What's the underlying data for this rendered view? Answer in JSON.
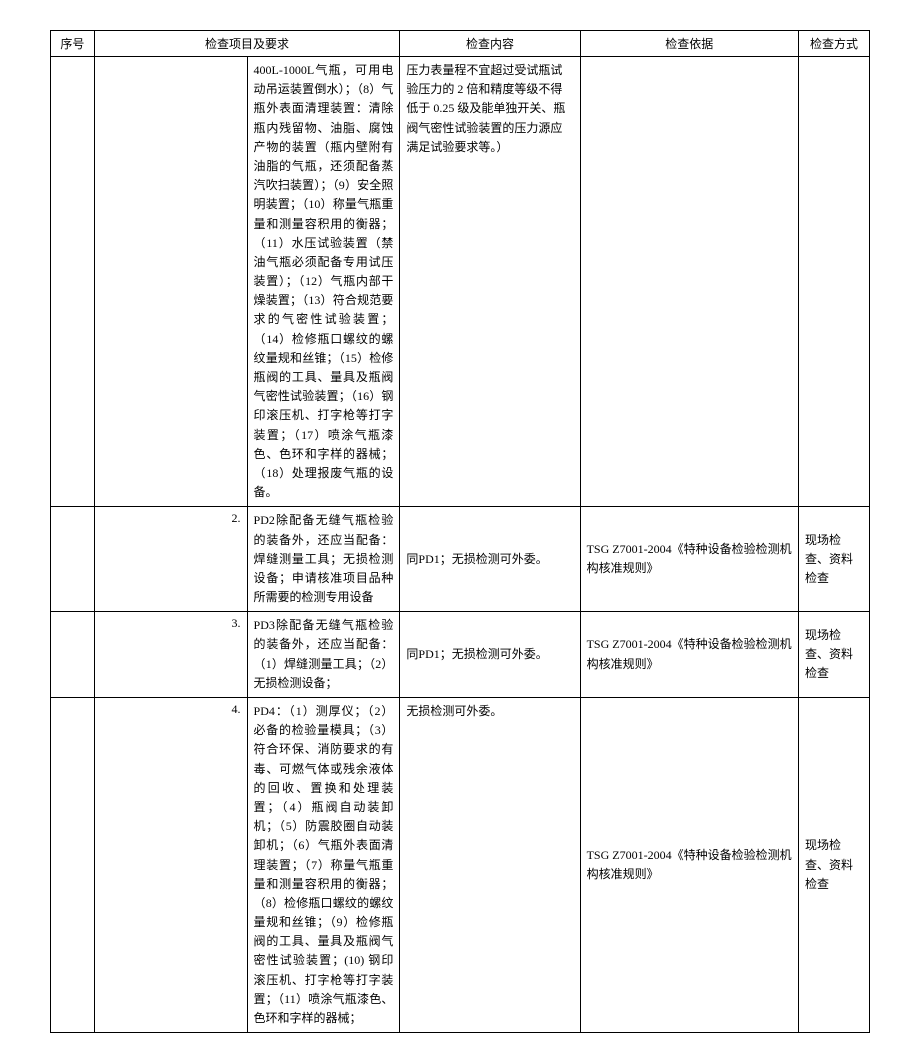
{
  "headers": {
    "seq": "序号",
    "item": "检查项目及要求",
    "content": "检查内容",
    "basis": "检查依据",
    "method": "检查方式"
  },
  "rows": [
    {
      "seq": "",
      "sub": "",
      "item": "400L-1000L气瓶，可用电动吊运装置倒水）；（8）气瓶外表面清理装置：清除瓶内残留物、油脂、腐蚀产物的装置（瓶内壁附有油脂的气瓶，还须配备蒸汽吹扫装置）；（9）安全照明装置；（10）称量气瓶重量和测量容积用的衡器；（11）水压试验装置（禁油气瓶必须配备专用试压装置）；（12）气瓶内部干燥装置；（13）符合规范要求的气密性试验装置；（14）检修瓶口螺纹的螺纹量规和丝锥；（15）检修瓶阀的工具、量具及瓶阀气密性试验装置；（16）钢印滚压机、打字枪等打字装置；（17）喷涂气瓶漆色、色环和字样的器械；（18）处理报废气瓶的设备。",
      "content": "压力表量程不宜超过受试瓶试验压力的 2 倍和精度等级不得低于 0.25 级及能单独开关、瓶阀气密性试验装置的压力源应满足试验要求等。）",
      "basis": "",
      "method": ""
    },
    {
      "seq": "",
      "sub": "2.",
      "item": "PD2除配备无缝气瓶检验的装备外，还应当配备：焊缝测量工具；无损检测设备；申请核准项目品种所需要的检测专用设备",
      "content": "同PD1；无损检测可外委。",
      "basis": "TSG Z7001-2004《特种设备检验检测机构核准规则》",
      "method": "现场检查、资料检查"
    },
    {
      "seq": "",
      "sub": "3.",
      "item": "PD3除配备无缝气瓶检验的装备外，还应当配备：（1）焊缝测量工具；（2）无损检测设备；",
      "content": "同PD1；无损检测可外委。",
      "basis": "TSG Z7001-2004《特种设备检验检测机构核准规则》",
      "method": "现场检查、资料检查"
    },
    {
      "seq": "",
      "sub": "4.",
      "item": "PD4：（1）测厚仪；（2）必备的检验量模具；（3）符合环保、消防要求的有毒、可燃气体或残余液体的回收、置换和处理装置；（4）瓶阀自动装卸机；（5）防震胶圈自动装卸机；（6）气瓶外表面清理装置；（7）称量气瓶重量和测量容积用的衡器；（8）检修瓶口螺纹的螺纹量规和丝锥；（9）检修瓶阀的工具、量具及瓶阀气密性试验装置；(10) 钢印滚压机、打字枪等打字装置；（11）喷涂气瓶漆色、色环和字样的器械；",
      "content": "无损检测可外委。",
      "basis": "TSG Z7001-2004《特种设备检验检测机构核准规则》",
      "method": "现场检查、资料检查"
    }
  ]
}
